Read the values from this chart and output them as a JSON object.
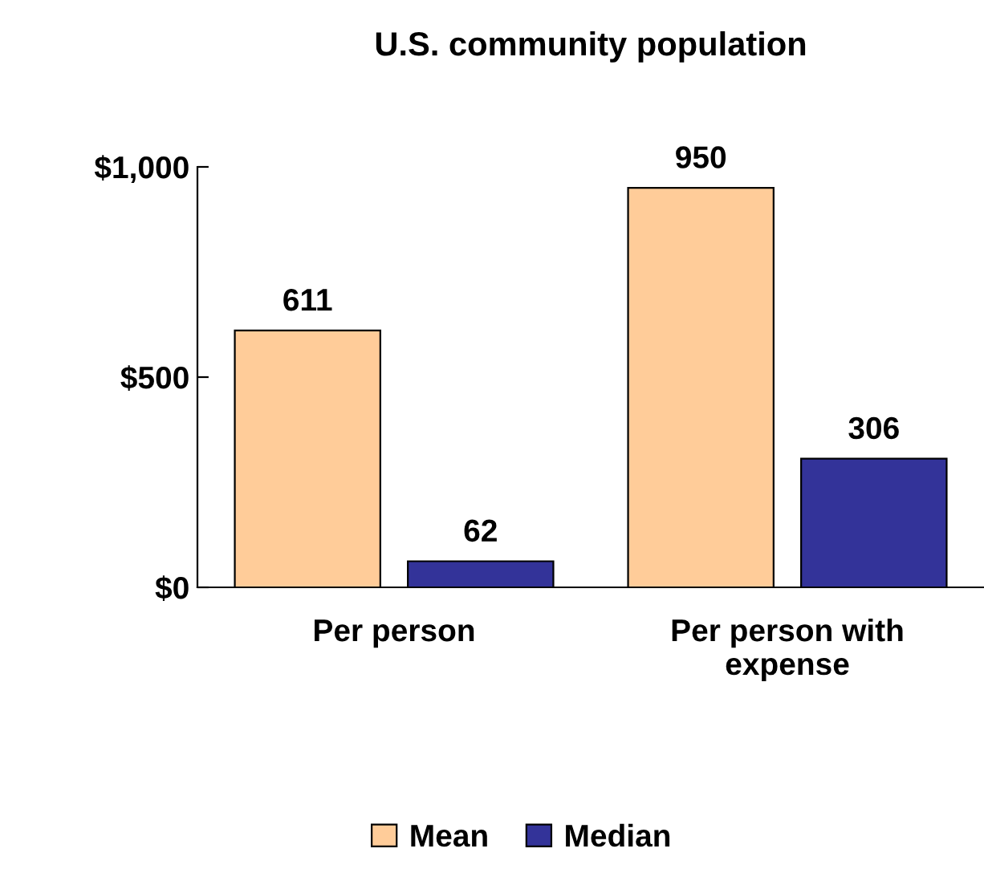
{
  "chart_data": {
    "type": "bar",
    "title": "U.S. community population",
    "categories": [
      "Per person",
      "Per person with\nexpense"
    ],
    "series": [
      {
        "name": "Mean",
        "color": "#ffcc99",
        "values": [
          611,
          950
        ]
      },
      {
        "name": "Median",
        "color": "#333399",
        "values": [
          62,
          306
        ]
      }
    ],
    "ylim": [
      0,
      1000
    ],
    "yticks": [
      {
        "value": 0,
        "label": "$0"
      },
      {
        "value": 500,
        "label": "$500"
      },
      {
        "value": 1000,
        "label": "$1,000"
      }
    ],
    "data_labels": true,
    "grid": false,
    "legend": "bottom"
  }
}
